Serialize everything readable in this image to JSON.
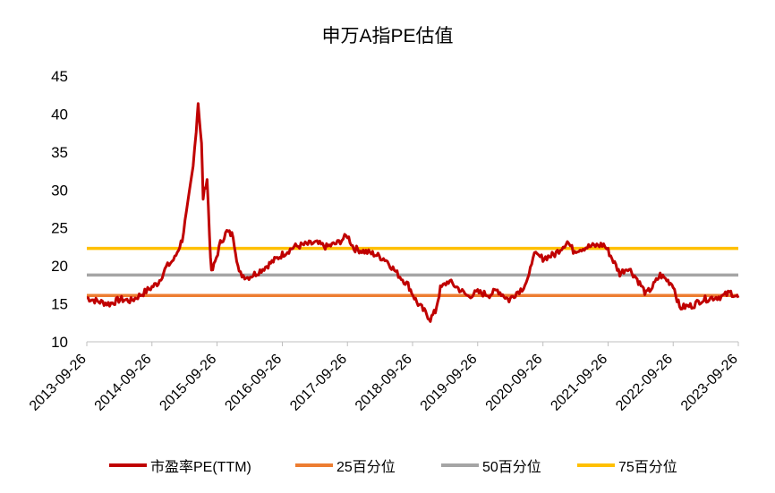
{
  "chart_data": {
    "type": "line",
    "title": "申万A指PE估值",
    "xlabel": "",
    "ylabel": "",
    "ylim": [
      10,
      45
    ],
    "yticks": [
      "10",
      "15",
      "20",
      "25",
      "30",
      "35",
      "40",
      "45"
    ],
    "xtick_labels": [
      "2013-09-26",
      "2014-09-26",
      "2015-09-26",
      "2016-09-26",
      "2017-09-26",
      "2018-09-26",
      "2019-09-26",
      "2020-09-26",
      "2021-09-26",
      "2022-09-26",
      "2023-09-26"
    ],
    "xlim": [
      "2013-09-26",
      "2023-09-26"
    ],
    "grid": false,
    "legend_position": "bottom",
    "series": [
      {
        "name": "市盈率PE(TTM)",
        "color": "#C00000",
        "kind": "line",
        "x": [
          "2013-09-26",
          "2013-12-01",
          "2014-02-01",
          "2014-04-01",
          "2014-06-01",
          "2014-08-01",
          "2014-09-26",
          "2014-11-01",
          "2014-12-15",
          "2015-02-01",
          "2015-03-15",
          "2015-04-15",
          "2015-05-15",
          "2015-06-01",
          "2015-06-12",
          "2015-07-01",
          "2015-07-10",
          "2015-08-01",
          "2015-08-15",
          "2015-08-26",
          "2015-09-15",
          "2015-10-15",
          "2015-11-20",
          "2015-12-25",
          "2016-01-28",
          "2016-03-15",
          "2016-05-01",
          "2016-07-01",
          "2016-09-26",
          "2016-12-01",
          "2017-02-01",
          "2017-04-01",
          "2017-06-01",
          "2017-08-01",
          "2017-09-26",
          "2017-11-01",
          "2018-01-15",
          "2018-03-01",
          "2018-05-01",
          "2018-07-01",
          "2018-09-01",
          "2018-10-20",
          "2018-12-01",
          "2019-01-04",
          "2019-02-01",
          "2019-03-01",
          "2019-04-15",
          "2019-06-01",
          "2019-08-01",
          "2019-09-26",
          "2019-12-01",
          "2020-01-15",
          "2020-03-20",
          "2020-05-01",
          "2020-06-01",
          "2020-07-10",
          "2020-08-01",
          "2020-09-26",
          "2020-12-01",
          "2021-02-10",
          "2021-03-15",
          "2021-06-01",
          "2021-09-01",
          "2021-09-26",
          "2021-12-01",
          "2022-01-15",
          "2022-03-01",
          "2022-04-27",
          "2022-06-01",
          "2022-07-15",
          "2022-09-26",
          "2022-11-01",
          "2023-01-15",
          "2023-03-01",
          "2023-05-01",
          "2023-07-01",
          "2023-08-15",
          "2023-09-26"
        ],
        "values": [
          15.8,
          15.3,
          15.0,
          15.6,
          15.4,
          16.3,
          17.2,
          17.8,
          19.8,
          21.0,
          23.5,
          28.0,
          33.0,
          38.0,
          41.5,
          36.0,
          29.0,
          31.5,
          24.0,
          19.0,
          20.5,
          23.0,
          24.5,
          24.0,
          19.0,
          18.5,
          19.0,
          20.0,
          21.5,
          22.5,
          22.8,
          23.0,
          22.5,
          23.0,
          24.0,
          22.3,
          21.8,
          21.5,
          20.8,
          19.0,
          17.5,
          15.2,
          14.0,
          13.0,
          14.0,
          17.0,
          18.0,
          17.2,
          16.0,
          16.5,
          16.2,
          16.8,
          15.5,
          16.5,
          17.0,
          18.5,
          21.5,
          21.0,
          21.5,
          23.2,
          22.0,
          22.5,
          22.8,
          22.0,
          19.0,
          19.8,
          18.5,
          16.3,
          17.2,
          18.8,
          17.5,
          14.5,
          14.8,
          15.5,
          15.8,
          16.0,
          16.5,
          15.8
        ]
      },
      {
        "name": "25百分位",
        "color": "#ED7D31",
        "kind": "hline",
        "value": 16.1
      },
      {
        "name": "50百分位",
        "color": "#A5A5A5",
        "kind": "hline",
        "value": 18.8
      },
      {
        "name": "75百分位",
        "color": "#FFC000",
        "kind": "hline",
        "value": 22.3
      }
    ]
  }
}
